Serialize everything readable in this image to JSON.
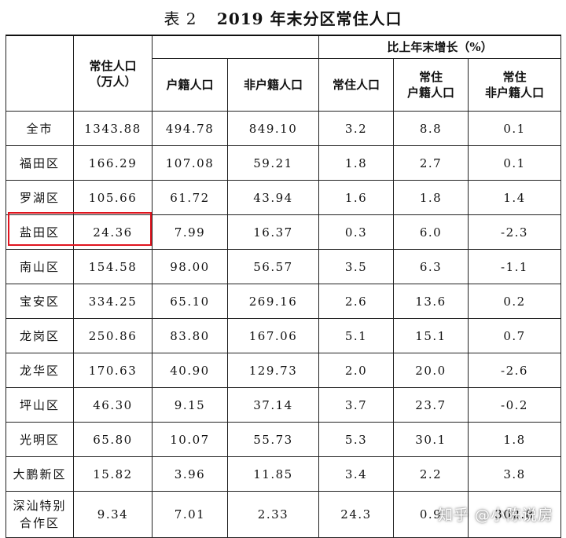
{
  "title": {
    "tag": "表 2",
    "text": "2019 年末分区常住人口"
  },
  "headers": {
    "resident": "常住人口\n（万人）",
    "registered": "户籍人口",
    "nonregistered": "非户籍人口",
    "growth_group": "比上年末增长（%）",
    "g_resident": "常住人口",
    "g_registered": "常住\n户籍人口",
    "g_nonregistered": "常住\n非户籍人口"
  },
  "rows": [
    {
      "name": "全市",
      "resident": "1343.88",
      "registered": "494.78",
      "nonregistered": "849.10",
      "g_resident": "3.2",
      "g_registered": "8.8",
      "g_nonregistered": "0.1"
    },
    {
      "name": "福田区",
      "resident": "166.29",
      "registered": "107.08",
      "nonregistered": "59.21",
      "g_resident": "1.8",
      "g_registered": "2.7",
      "g_nonregistered": "0.1"
    },
    {
      "name": "罗湖区",
      "resident": "105.66",
      "registered": "61.72",
      "nonregistered": "43.94",
      "g_resident": "1.6",
      "g_registered": "1.8",
      "g_nonregistered": "1.4"
    },
    {
      "name": "盐田区",
      "resident": "24.36",
      "registered": "7.99",
      "nonregistered": "16.37",
      "g_resident": "0.3",
      "g_registered": "6.0",
      "g_nonregistered": "-2.3"
    },
    {
      "name": "南山区",
      "resident": "154.58",
      "registered": "98.00",
      "nonregistered": "56.57",
      "g_resident": "3.5",
      "g_registered": "6.3",
      "g_nonregistered": "-1.1"
    },
    {
      "name": "宝安区",
      "resident": "334.25",
      "registered": "65.10",
      "nonregistered": "269.16",
      "g_resident": "2.6",
      "g_registered": "13.6",
      "g_nonregistered": "0.2"
    },
    {
      "name": "龙岗区",
      "resident": "250.86",
      "registered": "83.80",
      "nonregistered": "167.06",
      "g_resident": "5.1",
      "g_registered": "15.1",
      "g_nonregistered": "0.7"
    },
    {
      "name": "龙华区",
      "resident": "170.63",
      "registered": "40.90",
      "nonregistered": "129.73",
      "g_resident": "2.0",
      "g_registered": "20.0",
      "g_nonregistered": "-2.6"
    },
    {
      "name": "坪山区",
      "resident": "46.30",
      "registered": "9.15",
      "nonregistered": "37.14",
      "g_resident": "3.7",
      "g_registered": "23.7",
      "g_nonregistered": "-0.2"
    },
    {
      "name": "光明区",
      "resident": "65.80",
      "registered": "10.07",
      "nonregistered": "55.73",
      "g_resident": "5.3",
      "g_registered": "30.1",
      "g_nonregistered": "1.8"
    },
    {
      "name": "大鹏新区",
      "resident": "15.82",
      "registered": "3.96",
      "nonregistered": "11.85",
      "g_resident": "3.4",
      "g_registered": "2.2",
      "g_nonregistered": "3.8"
    },
    {
      "name": "深汕特别\n合作区",
      "resident": "9.34",
      "registered": "7.01",
      "nonregistered": "2.33",
      "g_resident": "24.3",
      "g_registered": "0.9",
      "g_nonregistered": "302.8"
    }
  ],
  "highlight_color": "#e0141e",
  "watermark": "知乎 @小陈说房"
}
